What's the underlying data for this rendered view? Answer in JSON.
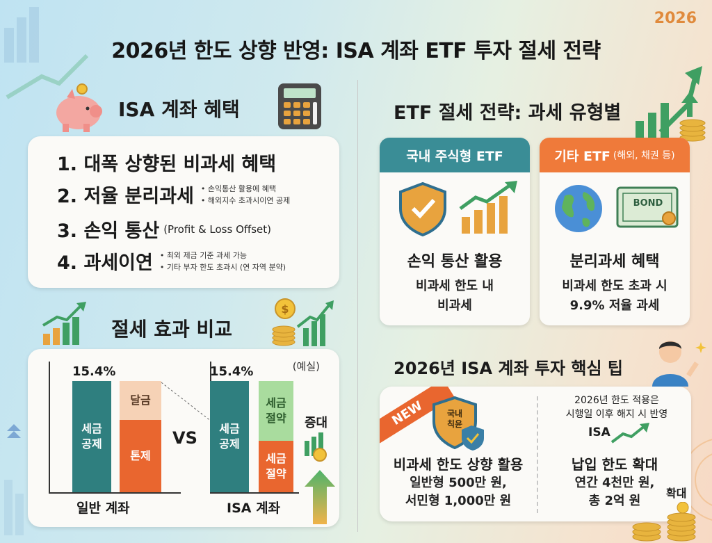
{
  "year_badge": "2026",
  "title": "2026년 한도 상향 반영: ISA 계좌 ETF 투자 절세 전략",
  "isa_benefits": {
    "title": "ISA 계좌 혜택",
    "items": [
      {
        "label": "1. 대폭 상향된 비과세 혜택"
      },
      {
        "label": "2. 저율 분리과세",
        "notes": [
          "손익통산 활용에 혜택",
          "해외지수 초과시이연 공제"
        ]
      },
      {
        "label": "3. 손익 통산",
        "sub": "(Profit & Loss Offset)"
      },
      {
        "label": "4. 과세이연",
        "notes": [
          "최외 제금 기준 과세 가능",
          "기타 부자 한도 초과시 (연 자역 분약)"
        ]
      }
    ]
  },
  "comparison": {
    "title": "절세 효과 비교",
    "note": "(예실)",
    "vs": "VS",
    "increase_label": "증대",
    "general": {
      "pct": "15.4%",
      "tax_bar": "세금\n공제",
      "top_bar": "달금",
      "bottom_bar": "톤제",
      "label": "일반 계좌"
    },
    "isa": {
      "pct": "15.4%",
      "tax_bar": "세금\n공제",
      "top_bar": "세금\n절약",
      "bottom_bar": "세금\n절약",
      "label": "ISA 계좌"
    }
  },
  "etf_strategy": {
    "title": "ETF 절세 전략: 과세 유형별",
    "cards": [
      {
        "header": "국내 주식형 ETF",
        "header_note": "",
        "label": "손익 통산 활용",
        "desc": "비과세 한도 내\n비과세"
      },
      {
        "header": "기타 ETF",
        "header_note": "(해외, 채권 등)",
        "label": "분리과세 혜택",
        "desc": "비과세 한도 초과 시\n9.9% 저율 과세",
        "bond_text": "BOND"
      }
    ]
  },
  "tips": {
    "title": "2026년 ISA 계좌 투자 핵심 팁",
    "new_badge": "NEW",
    "shield_text": "국내\n칙윤",
    "left_title": "비과세 한도 상향 활용",
    "left_desc": "일반형 500만 원,\n서민형 1,000만 원",
    "right_note": "2026년 한도 적용은\n시행일 이후 해지 시 반영",
    "right_isa": "ISA",
    "right_title": "납입 한도 확대",
    "right_desc": "연간 4천만 원,\n총 2억 원",
    "expand_label": "확대"
  },
  "colors": {
    "teal": "#2f7f7f",
    "orange": "#e9662f",
    "peach": "#f6d2b6",
    "green_light": "#a9dc9e",
    "teal_header": "#3a8d96",
    "orange_header": "#ef7a3a"
  }
}
